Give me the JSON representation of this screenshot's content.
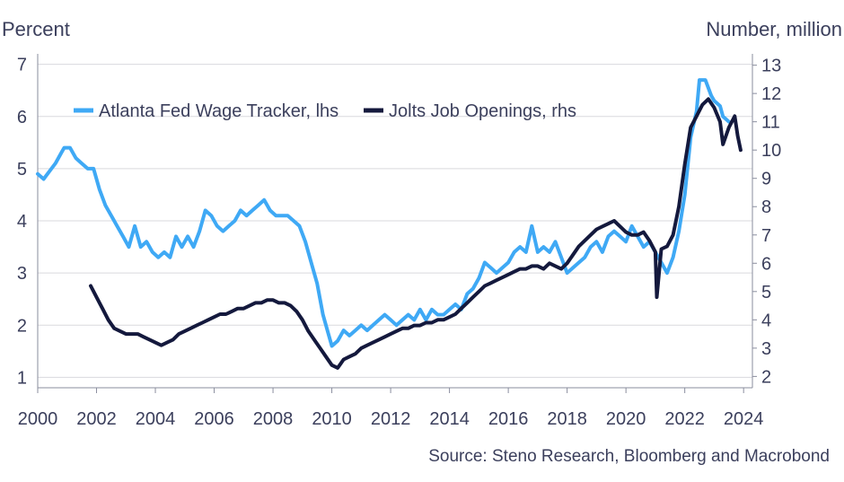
{
  "chart_data": {
    "type": "line",
    "left_axis_unit": "Percent",
    "right_axis_unit": "Number, million",
    "source": "Source: Steno Research, Bloomberg and Macrobond",
    "x_ticks": [
      "2000",
      "2002",
      "2004",
      "2006",
      "2008",
      "2010",
      "2012",
      "2014",
      "2016",
      "2018",
      "2020",
      "2022",
      "2024"
    ],
    "x_range": [
      2000,
      2024.3
    ],
    "y_left_ticks": [
      "1",
      "2",
      "3",
      "4",
      "5",
      "6",
      "7"
    ],
    "y_left_range": [
      0.8,
      7.2
    ],
    "y_right_ticks": [
      "2",
      "3",
      "4",
      "5",
      "6",
      "7",
      "8",
      "9",
      "10",
      "11",
      "12",
      "13"
    ],
    "y_right_range": [
      1.6,
      13.4
    ],
    "grid": true,
    "legend_placement": "top-left",
    "colors": {
      "wage": "#3fa9f5",
      "jolts": "#14193d",
      "grid": "#d9d9de",
      "text": "#3b3f5c"
    },
    "series": [
      {
        "name": "Atlanta Fed Wage Tracker, lhs",
        "axis": "left",
        "points": [
          [
            2000.0,
            4.9
          ],
          [
            2000.2,
            4.8
          ],
          [
            2000.4,
            4.95
          ],
          [
            2000.6,
            5.1
          ],
          [
            2000.8,
            5.3
          ],
          [
            2000.9,
            5.4
          ],
          [
            2001.1,
            5.4
          ],
          [
            2001.3,
            5.2
          ],
          [
            2001.5,
            5.1
          ],
          [
            2001.7,
            5.0
          ],
          [
            2001.9,
            5.0
          ],
          [
            2002.1,
            4.6
          ],
          [
            2002.3,
            4.3
          ],
          [
            2002.5,
            4.1
          ],
          [
            2002.7,
            3.9
          ],
          [
            2002.9,
            3.7
          ],
          [
            2003.1,
            3.5
          ],
          [
            2003.3,
            3.9
          ],
          [
            2003.5,
            3.5
          ],
          [
            2003.7,
            3.6
          ],
          [
            2003.9,
            3.4
          ],
          [
            2004.1,
            3.3
          ],
          [
            2004.3,
            3.4
          ],
          [
            2004.5,
            3.3
          ],
          [
            2004.7,
            3.7
          ],
          [
            2004.9,
            3.5
          ],
          [
            2005.1,
            3.7
          ],
          [
            2005.3,
            3.5
          ],
          [
            2005.5,
            3.8
          ],
          [
            2005.7,
            4.2
          ],
          [
            2005.9,
            4.1
          ],
          [
            2006.1,
            3.9
          ],
          [
            2006.3,
            3.8
          ],
          [
            2006.5,
            3.9
          ],
          [
            2006.7,
            4.0
          ],
          [
            2006.9,
            4.2
          ],
          [
            2007.1,
            4.1
          ],
          [
            2007.3,
            4.2
          ],
          [
            2007.5,
            4.3
          ],
          [
            2007.7,
            4.4
          ],
          [
            2007.9,
            4.2
          ],
          [
            2008.1,
            4.1
          ],
          [
            2008.3,
            4.1
          ],
          [
            2008.5,
            4.1
          ],
          [
            2008.7,
            4.0
          ],
          [
            2008.9,
            3.9
          ],
          [
            2009.1,
            3.6
          ],
          [
            2009.3,
            3.2
          ],
          [
            2009.5,
            2.8
          ],
          [
            2009.7,
            2.2
          ],
          [
            2009.9,
            1.8
          ],
          [
            2010.0,
            1.6
          ],
          [
            2010.2,
            1.7
          ],
          [
            2010.4,
            1.9
          ],
          [
            2010.6,
            1.8
          ],
          [
            2010.8,
            1.9
          ],
          [
            2011.0,
            2.0
          ],
          [
            2011.2,
            1.9
          ],
          [
            2011.4,
            2.0
          ],
          [
            2011.6,
            2.1
          ],
          [
            2011.8,
            2.2
          ],
          [
            2012.0,
            2.1
          ],
          [
            2012.2,
            2.0
          ],
          [
            2012.4,
            2.1
          ],
          [
            2012.6,
            2.2
          ],
          [
            2012.8,
            2.1
          ],
          [
            2013.0,
            2.3
          ],
          [
            2013.2,
            2.1
          ],
          [
            2013.4,
            2.3
          ],
          [
            2013.6,
            2.2
          ],
          [
            2013.8,
            2.2
          ],
          [
            2014.0,
            2.3
          ],
          [
            2014.2,
            2.4
          ],
          [
            2014.4,
            2.3
          ],
          [
            2014.6,
            2.6
          ],
          [
            2014.8,
            2.7
          ],
          [
            2015.0,
            2.9
          ],
          [
            2015.2,
            3.2
          ],
          [
            2015.4,
            3.1
          ],
          [
            2015.6,
            3.0
          ],
          [
            2015.8,
            3.1
          ],
          [
            2016.0,
            3.2
          ],
          [
            2016.2,
            3.4
          ],
          [
            2016.4,
            3.5
          ],
          [
            2016.6,
            3.4
          ],
          [
            2016.8,
            3.9
          ],
          [
            2017.0,
            3.4
          ],
          [
            2017.2,
            3.5
          ],
          [
            2017.4,
            3.4
          ],
          [
            2017.6,
            3.6
          ],
          [
            2017.8,
            3.3
          ],
          [
            2018.0,
            3.0
          ],
          [
            2018.2,
            3.1
          ],
          [
            2018.4,
            3.2
          ],
          [
            2018.6,
            3.3
          ],
          [
            2018.8,
            3.5
          ],
          [
            2019.0,
            3.6
          ],
          [
            2019.2,
            3.4
          ],
          [
            2019.4,
            3.7
          ],
          [
            2019.6,
            3.8
          ],
          [
            2019.8,
            3.7
          ],
          [
            2020.0,
            3.6
          ],
          [
            2020.2,
            3.9
          ],
          [
            2020.4,
            3.7
          ],
          [
            2020.6,
            3.5
          ],
          [
            2020.8,
            3.6
          ],
          [
            2021.0,
            3.4
          ],
          [
            2021.2,
            3.2
          ],
          [
            2021.4,
            3.0
          ],
          [
            2021.6,
            3.3
          ],
          [
            2021.8,
            3.8
          ],
          [
            2022.0,
            4.5
          ],
          [
            2022.2,
            5.6
          ],
          [
            2022.4,
            6.1
          ],
          [
            2022.5,
            6.7
          ],
          [
            2022.7,
            6.7
          ],
          [
            2022.9,
            6.4
          ],
          [
            2023.0,
            6.3
          ],
          [
            2023.2,
            6.2
          ],
          [
            2023.3,
            6.0
          ],
          [
            2023.5,
            5.9
          ]
        ]
      },
      {
        "name": "Jolts Job Openings, rhs",
        "axis": "right",
        "points": [
          [
            2001.8,
            5.2
          ],
          [
            2002.0,
            4.8
          ],
          [
            2002.2,
            4.4
          ],
          [
            2002.4,
            4.0
          ],
          [
            2002.6,
            3.7
          ],
          [
            2002.8,
            3.6
          ],
          [
            2003.0,
            3.5
          ],
          [
            2003.2,
            3.5
          ],
          [
            2003.4,
            3.5
          ],
          [
            2003.6,
            3.4
          ],
          [
            2003.8,
            3.3
          ],
          [
            2004.0,
            3.2
          ],
          [
            2004.2,
            3.1
          ],
          [
            2004.4,
            3.2
          ],
          [
            2004.6,
            3.3
          ],
          [
            2004.8,
            3.5
          ],
          [
            2005.0,
            3.6
          ],
          [
            2005.2,
            3.7
          ],
          [
            2005.4,
            3.8
          ],
          [
            2005.6,
            3.9
          ],
          [
            2005.8,
            4.0
          ],
          [
            2006.0,
            4.1
          ],
          [
            2006.2,
            4.2
          ],
          [
            2006.4,
            4.2
          ],
          [
            2006.6,
            4.3
          ],
          [
            2006.8,
            4.4
          ],
          [
            2007.0,
            4.4
          ],
          [
            2007.2,
            4.5
          ],
          [
            2007.4,
            4.6
          ],
          [
            2007.6,
            4.6
          ],
          [
            2007.8,
            4.7
          ],
          [
            2008.0,
            4.7
          ],
          [
            2008.2,
            4.6
          ],
          [
            2008.4,
            4.6
          ],
          [
            2008.6,
            4.5
          ],
          [
            2008.8,
            4.3
          ],
          [
            2009.0,
            4.0
          ],
          [
            2009.2,
            3.6
          ],
          [
            2009.4,
            3.3
          ],
          [
            2009.6,
            3.0
          ],
          [
            2009.8,
            2.7
          ],
          [
            2010.0,
            2.4
          ],
          [
            2010.2,
            2.3
          ],
          [
            2010.4,
            2.6
          ],
          [
            2010.6,
            2.7
          ],
          [
            2010.8,
            2.8
          ],
          [
            2011.0,
            3.0
          ],
          [
            2011.2,
            3.1
          ],
          [
            2011.4,
            3.2
          ],
          [
            2011.6,
            3.3
          ],
          [
            2011.8,
            3.4
          ],
          [
            2012.0,
            3.5
          ],
          [
            2012.2,
            3.6
          ],
          [
            2012.4,
            3.7
          ],
          [
            2012.6,
            3.7
          ],
          [
            2012.8,
            3.8
          ],
          [
            2013.0,
            3.8
          ],
          [
            2013.2,
            3.9
          ],
          [
            2013.4,
            3.9
          ],
          [
            2013.6,
            4.0
          ],
          [
            2013.8,
            4.0
          ],
          [
            2014.0,
            4.1
          ],
          [
            2014.2,
            4.2
          ],
          [
            2014.4,
            4.4
          ],
          [
            2014.6,
            4.6
          ],
          [
            2014.8,
            4.8
          ],
          [
            2015.0,
            5.0
          ],
          [
            2015.2,
            5.2
          ],
          [
            2015.4,
            5.3
          ],
          [
            2015.6,
            5.4
          ],
          [
            2015.8,
            5.5
          ],
          [
            2016.0,
            5.6
          ],
          [
            2016.2,
            5.7
          ],
          [
            2016.4,
            5.8
          ],
          [
            2016.6,
            5.8
          ],
          [
            2016.8,
            5.9
          ],
          [
            2017.0,
            5.9
          ],
          [
            2017.2,
            5.8
          ],
          [
            2017.4,
            6.0
          ],
          [
            2017.6,
            5.9
          ],
          [
            2017.8,
            5.8
          ],
          [
            2018.0,
            6.0
          ],
          [
            2018.2,
            6.3
          ],
          [
            2018.4,
            6.6
          ],
          [
            2018.6,
            6.8
          ],
          [
            2018.8,
            7.0
          ],
          [
            2019.0,
            7.2
          ],
          [
            2019.2,
            7.3
          ],
          [
            2019.4,
            7.4
          ],
          [
            2019.6,
            7.5
          ],
          [
            2019.8,
            7.3
          ],
          [
            2020.0,
            7.1
          ],
          [
            2020.2,
            7.0
          ],
          [
            2020.4,
            7.0
          ],
          [
            2020.6,
            7.1
          ],
          [
            2020.8,
            6.8
          ],
          [
            2021.0,
            6.4
          ],
          [
            2021.05,
            4.8
          ],
          [
            2021.2,
            6.5
          ],
          [
            2021.4,
            6.6
          ],
          [
            2021.6,
            7.0
          ],
          [
            2021.8,
            8.0
          ],
          [
            2022.0,
            9.5
          ],
          [
            2022.2,
            10.8
          ],
          [
            2022.4,
            11.2
          ],
          [
            2022.6,
            11.6
          ],
          [
            2022.8,
            11.8
          ],
          [
            2023.0,
            11.5
          ],
          [
            2023.2,
            11.0
          ],
          [
            2023.3,
            10.2
          ],
          [
            2023.5,
            10.8
          ],
          [
            2023.7,
            11.2
          ],
          [
            2023.8,
            10.5
          ],
          [
            2023.9,
            10.0
          ]
        ]
      }
    ]
  }
}
